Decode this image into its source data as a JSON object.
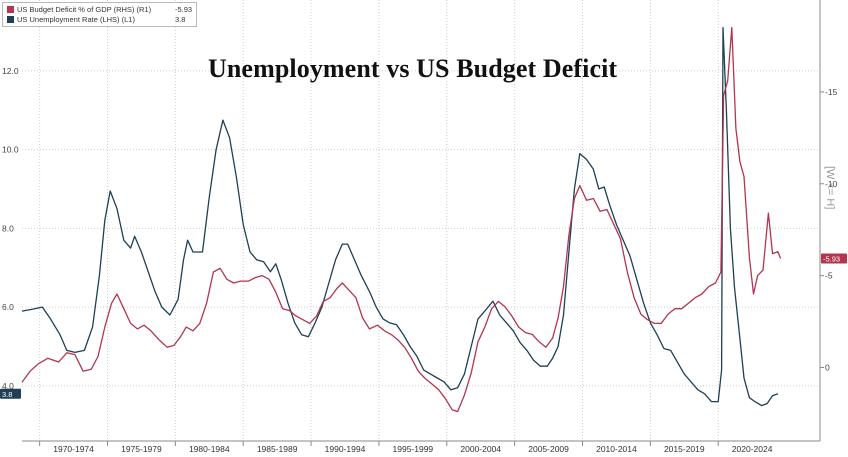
{
  "title": "Unemployment vs US Budget Deficit",
  "legend": [
    {
      "name": "US Budget Deficit % of GDP (RHS) (R1)",
      "value": "-5.93",
      "color": "#b3354f"
    },
    {
      "name": "US Unemployment Rate (LHS) (L1)",
      "value": "3.8",
      "color": "#1e3f55"
    }
  ],
  "right_axis_label": "[W <= H]",
  "chart_data": {
    "type": "line",
    "title": "Unemployment vs US Budget Deficit",
    "grid": true,
    "legend_position": "top-left",
    "x_categories": [
      "1970-1974",
      "1975-1979",
      "1980-1984",
      "1985-1989",
      "1990-1994",
      "1995-1999",
      "2000-2004",
      "2005-2009",
      "2010-2014",
      "2015-2019",
      "2020-2024"
    ],
    "x_range": [
      1968.7,
      2027.5
    ],
    "left_axis": {
      "ticks": [
        "12.0",
        "10.0",
        "8.0",
        "6.0",
        "4.0"
      ],
      "range": [
        2.6,
        13.8
      ]
    },
    "right_axis": {
      "ticks": [
        "-15",
        "-10",
        "-5",
        "0"
      ],
      "range": [
        -20,
        4
      ],
      "reversed": true
    },
    "series": [
      {
        "name": "US Unemployment Rate (LHS) (L1)",
        "axis": "left",
        "color": "#1e3f55",
        "last_value_label": "3.8",
        "points": [
          [
            1968.7,
            5.9
          ],
          [
            1969.5,
            5.95
          ],
          [
            1970.2,
            6.0
          ],
          [
            1970.8,
            5.7
          ],
          [
            1971.5,
            5.3
          ],
          [
            1972.0,
            4.9
          ],
          [
            1972.6,
            4.85
          ],
          [
            1973.3,
            4.9
          ],
          [
            1973.9,
            5.5
          ],
          [
            1974.4,
            6.8
          ],
          [
            1974.8,
            8.2
          ],
          [
            1975.2,
            8.95
          ],
          [
            1975.7,
            8.5
          ],
          [
            1976.2,
            7.7
          ],
          [
            1976.7,
            7.5
          ],
          [
            1977.0,
            7.8
          ],
          [
            1977.5,
            7.4
          ],
          [
            1978.0,
            6.9
          ],
          [
            1978.5,
            6.4
          ],
          [
            1979.0,
            6.0
          ],
          [
            1979.6,
            5.8
          ],
          [
            1980.2,
            6.2
          ],
          [
            1980.6,
            7.2
          ],
          [
            1980.9,
            7.7
          ],
          [
            1981.3,
            7.4
          ],
          [
            1982.0,
            7.4
          ],
          [
            1982.5,
            8.8
          ],
          [
            1983.0,
            10.0
          ],
          [
            1983.5,
            10.75
          ],
          [
            1984.0,
            10.3
          ],
          [
            1984.5,
            9.3
          ],
          [
            1985.0,
            8.1
          ],
          [
            1985.5,
            7.4
          ],
          [
            1986.0,
            7.2
          ],
          [
            1986.5,
            7.15
          ],
          [
            1987.0,
            6.9
          ],
          [
            1987.4,
            7.1
          ],
          [
            1987.8,
            6.7
          ],
          [
            1988.3,
            6.1
          ],
          [
            1988.8,
            5.6
          ],
          [
            1989.3,
            5.3
          ],
          [
            1989.8,
            5.25
          ],
          [
            1990.3,
            5.6
          ],
          [
            1990.8,
            6.0
          ],
          [
            1991.3,
            6.6
          ],
          [
            1991.8,
            7.2
          ],
          [
            1992.3,
            7.6
          ],
          [
            1992.7,
            7.6
          ],
          [
            1993.2,
            7.2
          ],
          [
            1993.7,
            6.8
          ],
          [
            1994.3,
            6.4
          ],
          [
            1994.8,
            6.0
          ],
          [
            1995.3,
            5.7
          ],
          [
            1995.8,
            5.6
          ],
          [
            1996.3,
            5.55
          ],
          [
            1996.8,
            5.3
          ],
          [
            1997.3,
            5.0
          ],
          [
            1997.8,
            4.75
          ],
          [
            1998.3,
            4.4
          ],
          [
            1998.8,
            4.3
          ],
          [
            1999.3,
            4.2
          ],
          [
            1999.8,
            4.1
          ],
          [
            2000.3,
            3.9
          ],
          [
            2000.8,
            3.95
          ],
          [
            2001.3,
            4.3
          ],
          [
            2001.8,
            5.0
          ],
          [
            2002.3,
            5.7
          ],
          [
            2002.8,
            5.9
          ],
          [
            2003.4,
            6.15
          ],
          [
            2003.9,
            5.8
          ],
          [
            2004.4,
            5.6
          ],
          [
            2004.9,
            5.4
          ],
          [
            2005.4,
            5.1
          ],
          [
            2005.9,
            4.9
          ],
          [
            2006.4,
            4.65
          ],
          [
            2006.9,
            4.5
          ],
          [
            2007.4,
            4.5
          ],
          [
            2007.8,
            4.7
          ],
          [
            2008.2,
            5.0
          ],
          [
            2008.6,
            5.8
          ],
          [
            2009.0,
            7.4
          ],
          [
            2009.4,
            9.0
          ],
          [
            2009.8,
            9.9
          ],
          [
            2010.3,
            9.75
          ],
          [
            2010.8,
            9.5
          ],
          [
            2011.2,
            9.0
          ],
          [
            2011.6,
            9.05
          ],
          [
            2012.0,
            8.6
          ],
          [
            2012.5,
            8.1
          ],
          [
            2013.0,
            7.7
          ],
          [
            2013.5,
            7.3
          ],
          [
            2014.0,
            6.7
          ],
          [
            2014.5,
            6.1
          ],
          [
            2015.0,
            5.6
          ],
          [
            2015.5,
            5.3
          ],
          [
            2016.0,
            4.95
          ],
          [
            2016.5,
            4.9
          ],
          [
            2017.0,
            4.6
          ],
          [
            2017.5,
            4.3
          ],
          [
            2018.0,
            4.1
          ],
          [
            2018.5,
            3.9
          ],
          [
            2019.0,
            3.8
          ],
          [
            2019.5,
            3.6
          ],
          [
            2020.0,
            3.6
          ],
          [
            2020.25,
            4.4
          ],
          [
            2020.35,
            13.1
          ],
          [
            2020.6,
            11.0
          ],
          [
            2020.9,
            8.0
          ],
          [
            2021.2,
            6.5
          ],
          [
            2021.6,
            5.2
          ],
          [
            2021.9,
            4.2
          ],
          [
            2022.3,
            3.7
          ],
          [
            2022.7,
            3.6
          ],
          [
            2023.2,
            3.5
          ],
          [
            2023.6,
            3.55
          ],
          [
            2024.0,
            3.75
          ],
          [
            2024.4,
            3.8
          ]
        ]
      },
      {
        "name": "US Budget Deficit % of GDP (RHS) (R1)",
        "axis": "right",
        "color": "#b3354f",
        "last_value_label": "-5.93",
        "points": [
          [
            1968.7,
            0.8
          ],
          [
            1969.3,
            0.2
          ],
          [
            1969.9,
            -0.2
          ],
          [
            1970.6,
            -0.5
          ],
          [
            1971.4,
            -0.3
          ],
          [
            1972.0,
            -0.8
          ],
          [
            1972.6,
            -0.7
          ],
          [
            1973.2,
            0.2
          ],
          [
            1973.8,
            0.1
          ],
          [
            1974.3,
            -0.6
          ],
          [
            1974.8,
            -2.2
          ],
          [
            1975.3,
            -3.5
          ],
          [
            1975.7,
            -4.0
          ],
          [
            1976.2,
            -3.2
          ],
          [
            1976.7,
            -2.4
          ],
          [
            1977.2,
            -2.1
          ],
          [
            1977.7,
            -2.3
          ],
          [
            1978.2,
            -2.0
          ],
          [
            1978.8,
            -1.5
          ],
          [
            1979.4,
            -1.1
          ],
          [
            1979.9,
            -1.2
          ],
          [
            1980.4,
            -1.7
          ],
          [
            1980.8,
            -2.2
          ],
          [
            1981.3,
            -2.0
          ],
          [
            1981.8,
            -2.4
          ],
          [
            1982.3,
            -3.5
          ],
          [
            1982.8,
            -5.2
          ],
          [
            1983.3,
            -5.4
          ],
          [
            1983.8,
            -4.8
          ],
          [
            1984.3,
            -4.6
          ],
          [
            1984.8,
            -4.7
          ],
          [
            1985.4,
            -4.7
          ],
          [
            1985.9,
            -4.9
          ],
          [
            1986.4,
            -5.0
          ],
          [
            1986.9,
            -4.8
          ],
          [
            1987.4,
            -4.1
          ],
          [
            1987.9,
            -3.2
          ],
          [
            1988.4,
            -3.1
          ],
          [
            1988.9,
            -2.8
          ],
          [
            1989.4,
            -2.6
          ],
          [
            1989.9,
            -2.4
          ],
          [
            1990.4,
            -2.8
          ],
          [
            1990.9,
            -3.6
          ],
          [
            1991.4,
            -3.8
          ],
          [
            1991.9,
            -4.3
          ],
          [
            1992.3,
            -4.6
          ],
          [
            1992.8,
            -4.2
          ],
          [
            1993.3,
            -3.8
          ],
          [
            1993.8,
            -2.7
          ],
          [
            1994.3,
            -2.1
          ],
          [
            1994.9,
            -2.3
          ],
          [
            1995.4,
            -2.0
          ],
          [
            1995.9,
            -1.8
          ],
          [
            1996.4,
            -1.5
          ],
          [
            1996.9,
            -1.1
          ],
          [
            1997.4,
            -0.5
          ],
          [
            1997.9,
            0.2
          ],
          [
            1998.4,
            0.6
          ],
          [
            1998.9,
            0.9
          ],
          [
            1999.4,
            1.2
          ],
          [
            1999.9,
            1.7
          ],
          [
            2000.4,
            2.3
          ],
          [
            2000.8,
            2.4
          ],
          [
            2001.3,
            1.5
          ],
          [
            2001.8,
            0.3
          ],
          [
            2002.3,
            -1.4
          ],
          [
            2002.8,
            -2.2
          ],
          [
            2003.3,
            -3.2
          ],
          [
            2003.8,
            -3.6
          ],
          [
            2004.3,
            -3.3
          ],
          [
            2004.8,
            -2.8
          ],
          [
            2005.3,
            -2.2
          ],
          [
            2005.8,
            -1.9
          ],
          [
            2006.3,
            -1.8
          ],
          [
            2006.8,
            -1.4
          ],
          [
            2007.3,
            -1.1
          ],
          [
            2007.8,
            -1.6
          ],
          [
            2008.2,
            -2.7
          ],
          [
            2008.6,
            -4.4
          ],
          [
            2009.0,
            -7.2
          ],
          [
            2009.4,
            -9.2
          ],
          [
            2009.8,
            -9.9
          ],
          [
            2010.3,
            -9.1
          ],
          [
            2010.8,
            -9.2
          ],
          [
            2011.3,
            -8.5
          ],
          [
            2011.8,
            -8.6
          ],
          [
            2012.3,
            -7.8
          ],
          [
            2012.8,
            -7.0
          ],
          [
            2013.3,
            -5.2
          ],
          [
            2013.8,
            -3.8
          ],
          [
            2014.3,
            -2.9
          ],
          [
            2014.8,
            -2.6
          ],
          [
            2015.3,
            -2.4
          ],
          [
            2015.8,
            -2.4
          ],
          [
            2016.3,
            -2.9
          ],
          [
            2016.8,
            -3.2
          ],
          [
            2017.3,
            -3.2
          ],
          [
            2017.8,
            -3.5
          ],
          [
            2018.3,
            -3.8
          ],
          [
            2018.8,
            -4.0
          ],
          [
            2019.3,
            -4.4
          ],
          [
            2019.8,
            -4.6
          ],
          [
            2020.2,
            -5.2
          ],
          [
            2020.4,
            -14.8
          ],
          [
            2020.7,
            -15.6
          ],
          [
            2021.0,
            -18.5
          ],
          [
            2021.3,
            -13.0
          ],
          [
            2021.6,
            -11.2
          ],
          [
            2021.9,
            -10.4
          ],
          [
            2022.3,
            -6.0
          ],
          [
            2022.6,
            -4.0
          ],
          [
            2022.9,
            -5.0
          ],
          [
            2023.3,
            -5.3
          ],
          [
            2023.7,
            -8.4
          ],
          [
            2024.0,
            -6.2
          ],
          [
            2024.4,
            -6.3
          ],
          [
            2024.6,
            -5.93
          ]
        ]
      }
    ]
  }
}
